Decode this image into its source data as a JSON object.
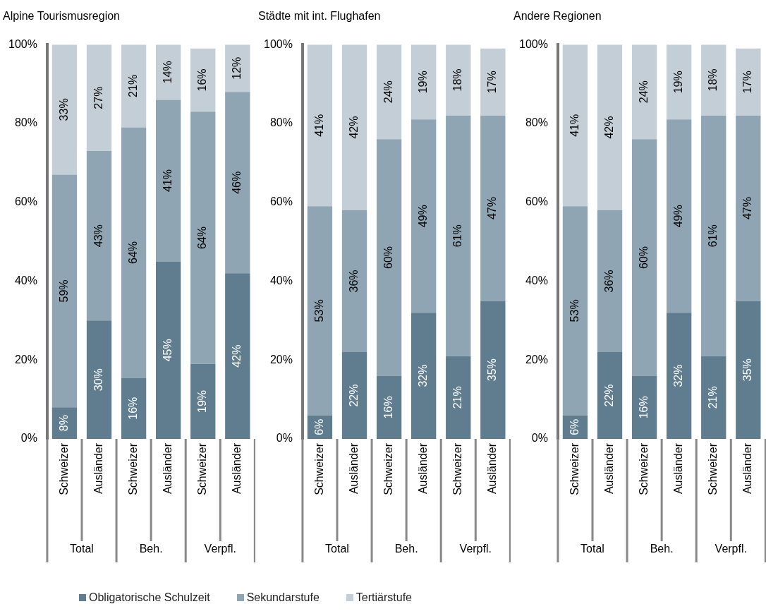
{
  "chart_data": [
    {
      "type": "bar",
      "title": "Alpine Tourismusregion",
      "stacked": true,
      "legend": "bottom",
      "grid": false,
      "categories": [
        "Schweizer",
        "Ausländer",
        "Schweizer",
        "Ausländer",
        "Schweizer",
        "Ausländer"
      ],
      "annotations": [
        "Total",
        "Beh.",
        "Verpfl."
      ],
      "ylim": [
        0,
        100
      ],
      "yticks": [
        {
          "value": 0,
          "label": "0%"
        },
        {
          "value": 20,
          "label": "20%"
        },
        {
          "value": 40,
          "label": "40%"
        },
        {
          "value": 60,
          "label": "60%"
        },
        {
          "value": 80,
          "label": "80%"
        },
        {
          "value": 100,
          "label": "100%"
        }
      ],
      "series": [
        {
          "name": "Obligatorische Schulzeit",
          "color": "#5f7d8f",
          "values": [
            8,
            30,
            15.5,
            45,
            19,
            42
          ],
          "value_labels": [
            "8%",
            "30%",
            "16%",
            "45%",
            "19%",
            "42%"
          ]
        },
        {
          "name": "Sekundarstufe",
          "color": "#8fa5b3",
          "values": [
            59,
            43,
            63.5,
            41,
            64,
            46
          ],
          "value_labels": [
            "59%",
            "43%",
            "64%",
            "41%",
            "64%",
            "46%"
          ]
        },
        {
          "name": "Tertiärstufe",
          "color": "#c3ced7",
          "values": [
            33,
            27,
            21,
            14,
            16,
            12
          ],
          "value_labels": [
            "33%",
            "27%",
            "21%",
            "14%",
            "16%",
            "12%"
          ]
        }
      ]
    },
    {
      "type": "bar",
      "title": "Städte mit int. Flughafen",
      "stacked": true,
      "grid": false,
      "categories": [
        "Schweizer",
        "Ausländer",
        "Schweizer",
        "Ausländer",
        "Schweizer",
        "Ausländer"
      ],
      "annotations": [
        "Total",
        "Beh.",
        "Verpfl."
      ],
      "ylim": [
        0,
        100
      ],
      "yticks": [
        {
          "value": 0,
          "label": "0%"
        },
        {
          "value": 20,
          "label": "20%"
        },
        {
          "value": 40,
          "label": "40%"
        },
        {
          "value": 60,
          "label": "60%"
        },
        {
          "value": 80,
          "label": "80%"
        },
        {
          "value": 100,
          "label": "100%"
        }
      ],
      "series": [
        {
          "color": "#5f7d8f",
          "values": [
            6,
            22,
            16,
            32,
            21,
            35
          ],
          "value_labels": [
            "6%",
            "22%",
            "16%",
            "32%",
            "21%",
            "35%"
          ]
        },
        {
          "color": "#8fa5b3",
          "values": [
            53,
            36,
            60,
            49,
            61,
            47
          ],
          "value_labels": [
            "53%",
            "36%",
            "60%",
            "49%",
            "61%",
            "47%"
          ]
        },
        {
          "color": "#c3ced7",
          "values": [
            41,
            42,
            24,
            19,
            18,
            17
          ],
          "value_labels": [
            "41%",
            "42%",
            "24%",
            "19%",
            "18%",
            "17%"
          ]
        }
      ]
    },
    {
      "type": "bar",
      "title": "Andere Regionen",
      "stacked": true,
      "grid": false,
      "categories": [
        "Schweizer",
        "Ausländer",
        "Schweizer",
        "Ausländer",
        "Schweizer",
        "Ausländer"
      ],
      "annotations": [
        "Total",
        "Beh.",
        "Verpfl."
      ],
      "ylim": [
        0,
        100
      ],
      "yticks": [
        {
          "value": 0,
          "label": "0%"
        },
        {
          "value": 20,
          "label": "20%"
        },
        {
          "value": 40,
          "label": "40%"
        },
        {
          "value": 60,
          "label": "60%"
        },
        {
          "value": 80,
          "label": "80%"
        },
        {
          "value": 100,
          "label": "100%"
        }
      ],
      "series": [
        {
          "color": "#5f7d8f",
          "values": [
            6,
            22,
            16,
            32,
            21,
            35
          ],
          "value_labels": [
            "6%",
            "22%",
            "16%",
            "32%",
            "21%",
            "35%"
          ]
        },
        {
          "color": "#8fa5b3",
          "values": [
            53,
            36,
            60,
            49,
            61,
            47
          ],
          "value_labels": [
            "53%",
            "36%",
            "60%",
            "49%",
            "61%",
            "47%"
          ]
        },
        {
          "color": "#c3ced7",
          "values": [
            41,
            42,
            24,
            19,
            18,
            17
          ],
          "value_labels": [
            "41%",
            "42%",
            "24%",
            "19%",
            "18%",
            "17%"
          ]
        }
      ]
    }
  ]
}
